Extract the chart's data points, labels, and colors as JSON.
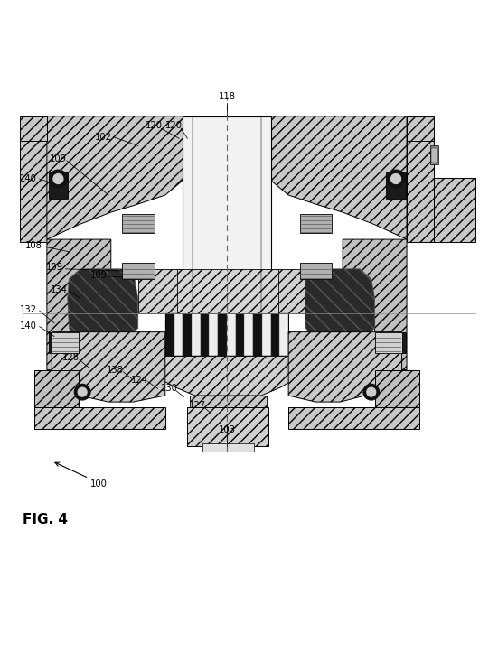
{
  "title": "FIG. 4",
  "bg_color": "#ffffff",
  "fig_width": 5.51,
  "fig_height": 7.32,
  "dpi": 100,
  "line_color": "#000000",
  "center_line_color": "#555555"
}
